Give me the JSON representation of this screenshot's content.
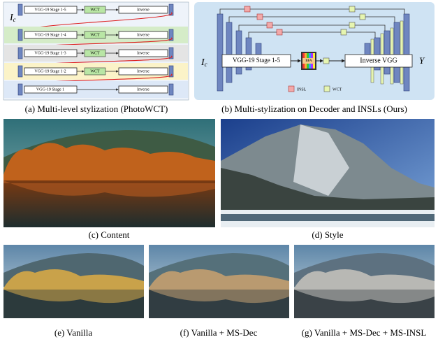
{
  "panel_a": {
    "input": {
      "main": "I",
      "sub": "c"
    },
    "rows": [
      {
        "encoder": "VGG-19 Stage 1-5",
        "transform": "WCT",
        "decoder": "Inverse"
      },
      {
        "encoder": "VGG-19 Stage 1-4",
        "transform": "WCT",
        "decoder": "Inverse"
      },
      {
        "encoder": "VGG-19 Stage 1-3",
        "transform": "WCT",
        "decoder": "Inverse"
      },
      {
        "encoder": "VGG-19 Stage 1-2",
        "transform": "WCT",
        "decoder": "Inverse"
      },
      {
        "encoder": "VGG-19 Stage 1",
        "transform": "WCT",
        "decoder": "Inverse"
      }
    ],
    "output": "Y",
    "caption": "(a) Multi-level stylization (PhotoWCT)"
  },
  "panel_b": {
    "input": {
      "main": "I",
      "sub": "c"
    },
    "encoder": "VGG-19 Stage 1-5",
    "fusion": "BFA",
    "decoder": "Inverse VGG",
    "output": "Y",
    "legend": [
      "INSL",
      "WCT"
    ],
    "caption": "(b) Multi-stylization on Decoder and INSLs (Ours)"
  },
  "images": [
    {
      "caption": "(c) Content"
    },
    {
      "caption": "(d) Style"
    },
    {
      "caption": "(e) Vanilla"
    },
    {
      "caption": "(f) Vanilla + MS-Dec"
    },
    {
      "caption": "(g) Vanilla + MS-Dec + MS-INSL"
    }
  ]
}
